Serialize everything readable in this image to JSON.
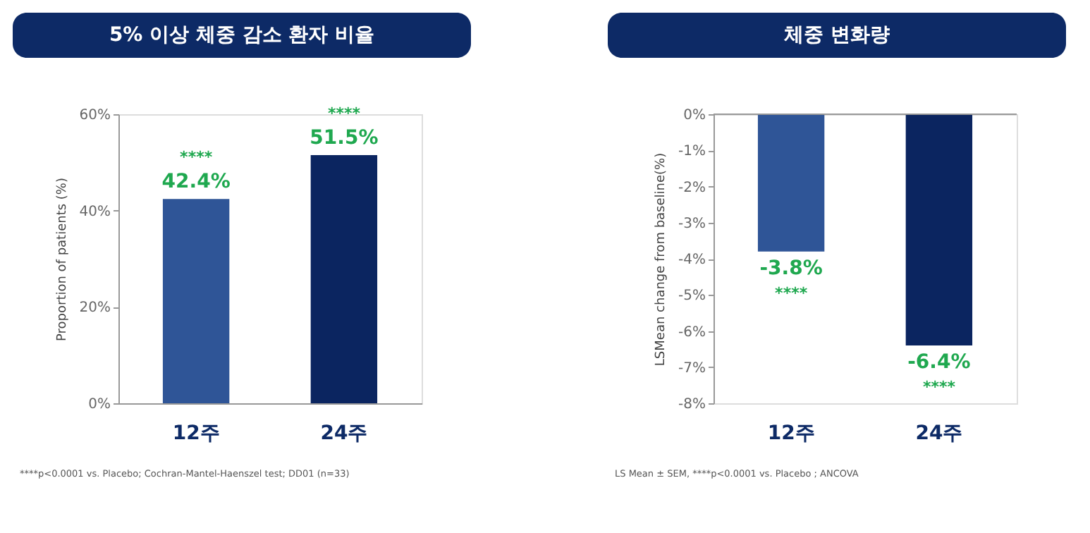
{
  "chart_data": [
    {
      "type": "bar",
      "title": "5% 이상 체중 감소 환자 비율",
      "ylabel": "Proportion of patients (%)",
      "categories": [
        "12주",
        "24주"
      ],
      "colors": [
        "#2f5597",
        "#0b2560"
      ],
      "values": [
        42.4,
        51.5
      ],
      "value_labels": [
        "42.4%",
        "51.5%"
      ],
      "ylim": [
        0,
        60
      ],
      "yticks": [
        {
          "value": 0,
          "label": "0%"
        },
        {
          "value": 20,
          "label": "20%"
        },
        {
          "value": 40,
          "label": "40%"
        },
        {
          "value": 60,
          "label": "60%"
        }
      ],
      "grid": false,
      "annotations": [
        {
          "text": "****",
          "x": "12주",
          "y": 42.4
        },
        {
          "text": "****",
          "x": "24주",
          "y": 51.5
        },
        "****p<0.0001 vs. Placebo; Cochran-Mantel-Haenszel test; DD01 (n=33)"
      ]
    },
    {
      "type": "bar",
      "title": "체중 변화량",
      "ylabel": "LSMean change from baseline(%)",
      "categories": [
        "12주",
        "24주"
      ],
      "colors": [
        "#2f5597",
        "#0b2560"
      ],
      "values": [
        -3.8,
        -6.4
      ],
      "value_labels": [
        "-3.8%",
        "-6.4%"
      ],
      "ylim": [
        -8,
        0
      ],
      "yticks": [
        {
          "value": -8,
          "label": "-8%"
        },
        {
          "value": -7,
          "label": "-7%"
        },
        {
          "value": -6,
          "label": "-6%"
        },
        {
          "value": -5,
          "label": "-5%"
        },
        {
          "value": -4,
          "label": "-4%"
        },
        {
          "value": -3,
          "label": "-3%"
        },
        {
          "value": -2,
          "label": "-2%"
        },
        {
          "value": -1,
          "label": "-1%"
        },
        {
          "value": 0,
          "label": "0%"
        }
      ],
      "grid": false,
      "annotations": [
        {
          "text": "****",
          "x": "12주",
          "y": -3.8
        },
        {
          "text": "****",
          "x": "24주",
          "y": -6.4
        },
        "LS Mean ± SEM, ****p<0.0001 vs. Placebo ; ANCOVA"
      ]
    }
  ]
}
